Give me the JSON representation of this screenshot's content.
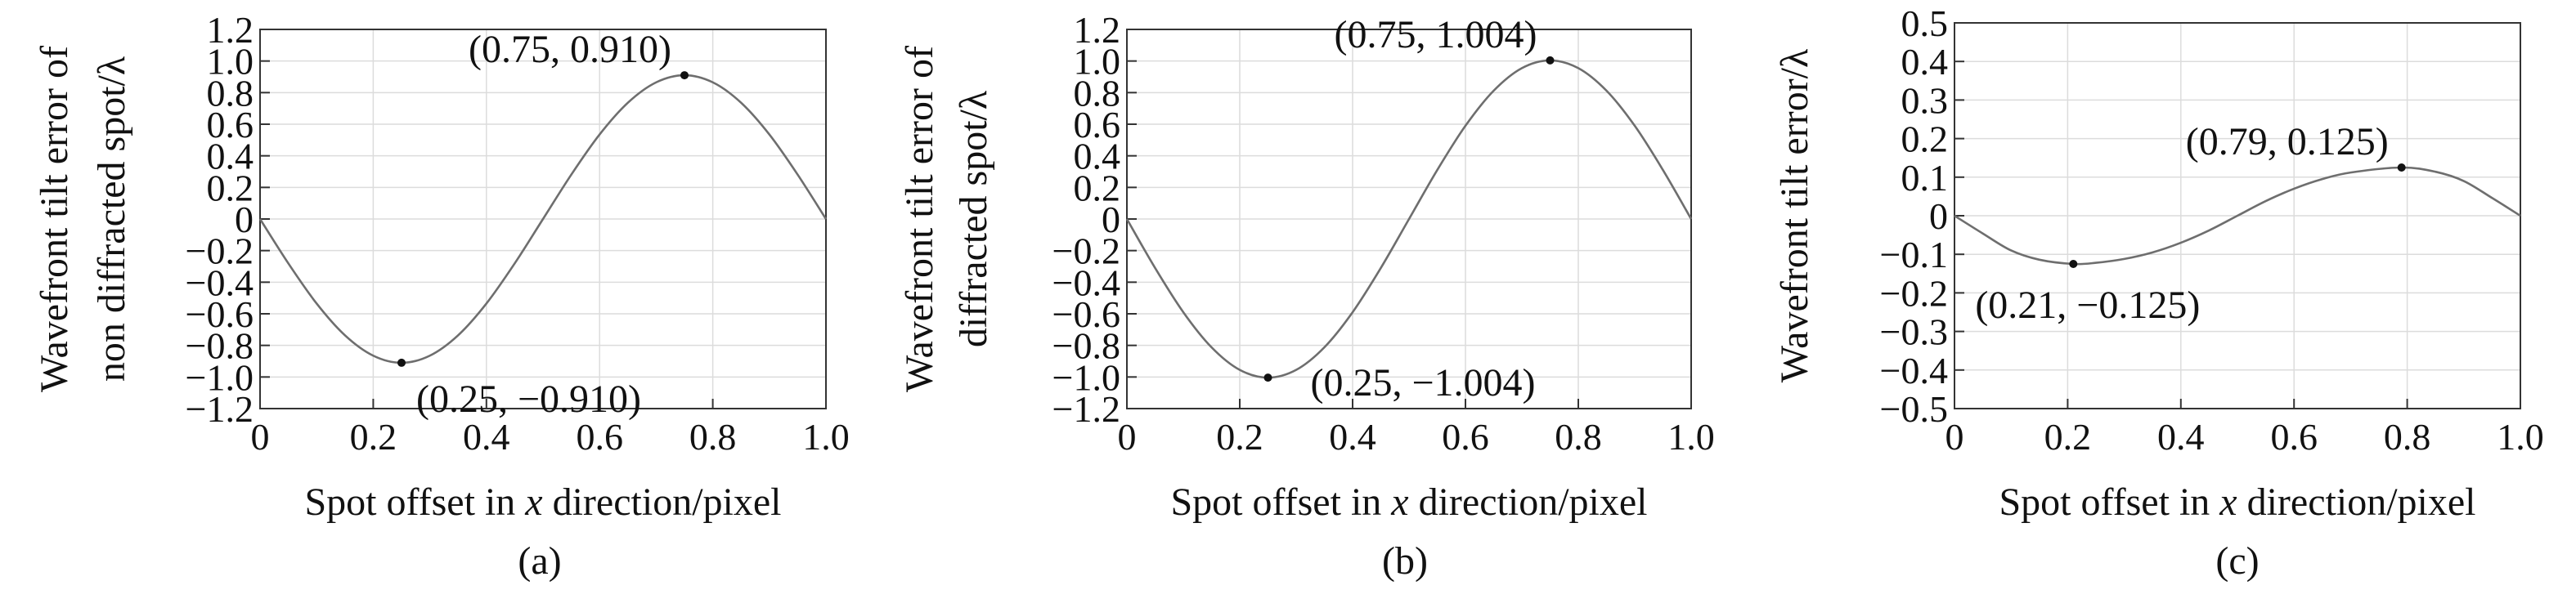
{
  "chart_data": [
    {
      "type": "line",
      "panel_label": "(a)",
      "xlabel_parts": [
        "Spot offset in ",
        "x",
        " direction/pixel"
      ],
      "ylabel_lines": [
        "Wavefront tilt error of",
        "non diffracted spot/λ"
      ],
      "xlim": [
        0,
        1.0
      ],
      "ylim": [
        -1.2,
        1.2
      ],
      "x_ticks": [
        0,
        0.2,
        0.4,
        0.6,
        0.8,
        1.0
      ],
      "x_tick_labels": [
        "0",
        "0.2",
        "0.4",
        "0.6",
        "0.8",
        "1.0"
      ],
      "y_ticks": [
        1.2,
        1.0,
        0.8,
        0.6,
        0.4,
        0.2,
        0,
        -0.2,
        -0.4,
        -0.6,
        -0.8,
        -1.0,
        -1.2
      ],
      "y_tick_labels": [
        "1.2",
        "1.0",
        "0.8",
        "0.6",
        "0.4",
        "0.2",
        "0",
        "−0.2",
        "−0.4",
        "−0.6",
        "−0.8",
        "−1.0",
        "−1.2"
      ],
      "grid": true,
      "series": [
        {
          "x": [
            0,
            0.05,
            0.1,
            0.15,
            0.2,
            0.25,
            0.3,
            0.35,
            0.4,
            0.45,
            0.5,
            0.55,
            0.6,
            0.65,
            0.7,
            0.75,
            0.8,
            0.85,
            0.9,
            0.95,
            1.0
          ],
          "y": [
            0,
            -0.281,
            -0.535,
            -0.736,
            -0.865,
            -0.91,
            -0.865,
            -0.736,
            -0.535,
            -0.281,
            0,
            0.281,
            0.535,
            0.736,
            0.865,
            0.91,
            0.865,
            0.736,
            0.535,
            0.281,
            0
          ]
        }
      ],
      "annotations": [
        {
          "x": 0.75,
          "y": 0.91,
          "text": "(0.75, 0.910)",
          "position": "above-left"
        },
        {
          "x": 0.25,
          "y": -0.91,
          "text": "(0.25, −0.910)",
          "position": "below-right"
        }
      ]
    },
    {
      "type": "line",
      "panel_label": "(b)",
      "xlabel_parts": [
        "Spot offset in ",
        "x",
        " direction/pixel"
      ],
      "ylabel_lines": [
        "Wavefront tilt error of",
        "diffracted spot/λ"
      ],
      "xlim": [
        0,
        1.0
      ],
      "ylim": [
        -1.2,
        1.2
      ],
      "x_ticks": [
        0,
        0.2,
        0.4,
        0.6,
        0.8,
        1.0
      ],
      "x_tick_labels": [
        "0",
        "0.2",
        "0.4",
        "0.6",
        "0.8",
        "1.0"
      ],
      "y_ticks": [
        1.2,
        1.0,
        0.8,
        0.6,
        0.4,
        0.2,
        0,
        -0.2,
        -0.4,
        -0.6,
        -0.8,
        -1.0,
        -1.2
      ],
      "y_tick_labels": [
        "1.2",
        "1.0",
        "0.8",
        "0.6",
        "0.4",
        "0.2",
        "0",
        "−0.2",
        "−0.4",
        "−0.6",
        "−0.8",
        "−1.0",
        "−1.2"
      ],
      "grid": true,
      "series": [
        {
          "x": [
            0,
            0.05,
            0.1,
            0.15,
            0.2,
            0.25,
            0.3,
            0.35,
            0.4,
            0.45,
            0.5,
            0.55,
            0.6,
            0.65,
            0.7,
            0.75,
            0.8,
            0.85,
            0.9,
            0.95,
            1.0
          ],
          "y": [
            0,
            -0.31,
            -0.59,
            -0.812,
            -0.955,
            -1.004,
            -0.955,
            -0.812,
            -0.59,
            -0.31,
            0,
            0.31,
            0.59,
            0.812,
            0.955,
            1.004,
            0.955,
            0.812,
            0.59,
            0.31,
            0
          ]
        }
      ],
      "annotations": [
        {
          "x": 0.75,
          "y": 1.004,
          "text": "(0.75, 1.004)",
          "position": "above-left"
        },
        {
          "x": 0.25,
          "y": -1.004,
          "text": "(0.25, −1.004)",
          "position": "right"
        }
      ]
    },
    {
      "type": "line",
      "panel_label": "(c)",
      "xlabel_parts": [
        "Spot offset in ",
        "x",
        " direction/pixel"
      ],
      "ylabel_lines": [
        "Wavefront tilt error/λ"
      ],
      "xlim": [
        0,
        1.0
      ],
      "ylim": [
        -0.5,
        0.5
      ],
      "x_ticks": [
        0,
        0.2,
        0.4,
        0.6,
        0.8,
        1.0
      ],
      "x_tick_labels": [
        "0",
        "0.2",
        "0.4",
        "0.6",
        "0.8",
        "1.0"
      ],
      "y_ticks": [
        0.5,
        0.4,
        0.3,
        0.2,
        0.1,
        0,
        -0.1,
        -0.2,
        -0.3,
        -0.4,
        -0.5
      ],
      "y_tick_labels": [
        "0.5",
        "0.4",
        "0.3",
        "0.2",
        "0.1",
        "0",
        "−0.1",
        "−0.2",
        "−0.3",
        "−0.4",
        "−0.5"
      ],
      "grid": true,
      "series": [
        {
          "x": [
            0,
            0.05,
            0.1,
            0.15,
            0.21,
            0.25,
            0.3,
            0.35,
            0.4,
            0.45,
            0.5,
            0.55,
            0.6,
            0.65,
            0.7,
            0.79,
            0.85,
            0.9,
            0.95,
            1.0
          ],
          "y": [
            0,
            -0.046,
            -0.09,
            -0.114,
            -0.125,
            -0.122,
            -0.112,
            -0.095,
            -0.07,
            -0.038,
            0,
            0.038,
            0.07,
            0.095,
            0.112,
            0.125,
            0.114,
            0.09,
            0.046,
            0
          ]
        }
      ],
      "annotations": [
        {
          "x": 0.79,
          "y": 0.125,
          "text": "(0.79, 0.125)",
          "position": "above-left"
        },
        {
          "x": 0.21,
          "y": -0.125,
          "text": "(0.21, −0.125)",
          "position": "below"
        }
      ]
    }
  ]
}
